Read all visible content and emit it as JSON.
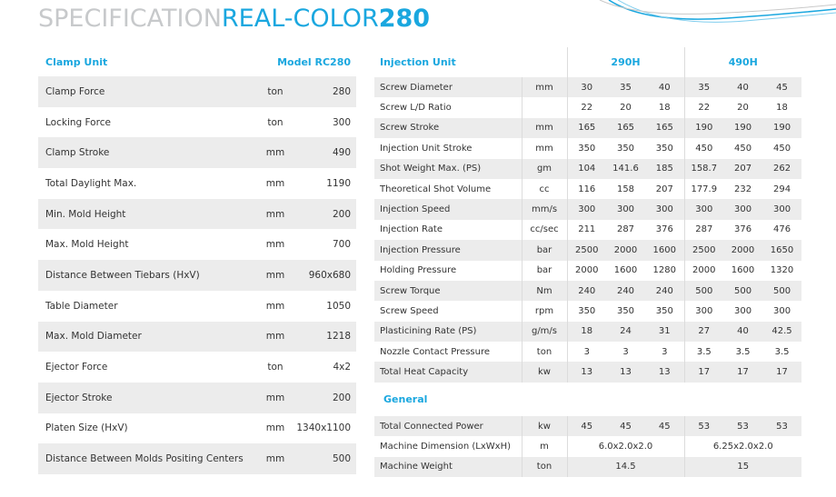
{
  "title": {
    "light": "SPECIFICATION",
    "blue": "REAL-COLOR",
    "bold": "280"
  },
  "clamp": {
    "header": "Clamp Unit",
    "model": "Model RC280",
    "rows": [
      {
        "name": "Clamp Force",
        "unit": "ton",
        "value": "280"
      },
      {
        "name": "Locking Force",
        "unit": "ton",
        "value": "300"
      },
      {
        "name": "Clamp Stroke",
        "unit": "mm",
        "value": "490"
      },
      {
        "name": "Total Daylight Max.",
        "unit": "mm",
        "value": "1190"
      },
      {
        "name": "Min. Mold Height",
        "unit": "mm",
        "value": "200"
      },
      {
        "name": "Max. Mold Height",
        "unit": "mm",
        "value": "700"
      },
      {
        "name": "Distance Between Tiebars (HxV)",
        "unit": "mm",
        "value": "960x680"
      },
      {
        "name": "Table Diameter",
        "unit": "mm",
        "value": "1050"
      },
      {
        "name": "Max. Mold Diameter",
        "unit": "mm",
        "value": "1218"
      },
      {
        "name": "Ejector Force",
        "unit": "ton",
        "value": "4x2"
      },
      {
        "name": "Ejector Stroke",
        "unit": "mm",
        "value": "200"
      },
      {
        "name": "Platen Size (HxV)",
        "unit": "mm",
        "value": "1340x1100"
      },
      {
        "name": "Distance Between Molds Positing Centers",
        "unit": "mm",
        "value": "500"
      }
    ]
  },
  "injection": {
    "header": "Injection Unit",
    "group1": "290H",
    "group2": "490H",
    "rows": [
      {
        "name": "Screw Diameter",
        "unit": "mm",
        "v": [
          "30",
          "35",
          "40",
          "35",
          "40",
          "45"
        ]
      },
      {
        "name": "Screw L/D Ratio",
        "unit": "",
        "v": [
          "22",
          "20",
          "18",
          "22",
          "20",
          "18"
        ]
      },
      {
        "name": "Screw Stroke",
        "unit": "mm",
        "v": [
          "165",
          "165",
          "165",
          "190",
          "190",
          "190"
        ]
      },
      {
        "name": "Injection Unit Stroke",
        "unit": "mm",
        "v": [
          "350",
          "350",
          "350",
          "450",
          "450",
          "450"
        ]
      },
      {
        "name": "Shot Weight Max. (PS)",
        "unit": "gm",
        "v": [
          "104",
          "141.6",
          "185",
          "158.7",
          "207",
          "262"
        ]
      },
      {
        "name": "Theoretical Shot Volume",
        "unit": "cc",
        "v": [
          "116",
          "158",
          "207",
          "177.9",
          "232",
          "294"
        ]
      },
      {
        "name": "Injection Speed",
        "unit": "mm/s",
        "v": [
          "300",
          "300",
          "300",
          "300",
          "300",
          "300"
        ]
      },
      {
        "name": "Injection Rate",
        "unit": "cc/sec",
        "v": [
          "211",
          "287",
          "376",
          "287",
          "376",
          "476"
        ]
      },
      {
        "name": "Injection Pressure",
        "unit": "bar",
        "v": [
          "2500",
          "2000",
          "1600",
          "2500",
          "2000",
          "1650"
        ]
      },
      {
        "name": "Holding Pressure",
        "unit": "bar",
        "v": [
          "2000",
          "1600",
          "1280",
          "2000",
          "1600",
          "1320"
        ]
      },
      {
        "name": "Screw Torque",
        "unit": "Nm",
        "v": [
          "240",
          "240",
          "240",
          "500",
          "500",
          "500"
        ]
      },
      {
        "name": "Screw Speed",
        "unit": "rpm",
        "v": [
          "350",
          "350",
          "350",
          "300",
          "300",
          "300"
        ]
      },
      {
        "name": "Plasticining Rate (PS)",
        "unit": "g/m/s",
        "v": [
          "18",
          "24",
          "31",
          "27",
          "40",
          "42.5"
        ]
      },
      {
        "name": "Nozzle Contact Pressure",
        "unit": "ton",
        "v": [
          "3",
          "3",
          "3",
          "3.5",
          "3.5",
          "3.5"
        ]
      },
      {
        "name": "Total Heat Capacity",
        "unit": "kw",
        "v": [
          "13",
          "13",
          "13",
          "17",
          "17",
          "17"
        ]
      }
    ]
  },
  "general": {
    "header": "General",
    "power": {
      "name": "Total Connected Power",
      "unit": "kw",
      "v": [
        "45",
        "45",
        "45",
        "53",
        "53",
        "53"
      ]
    },
    "dimension": {
      "name": "Machine Dimension (LxWxH)",
      "unit": "m",
      "g1": "6.0x2.0x2.0",
      "g2": "6.25x2.0x2.0"
    },
    "weight": {
      "name": "Machine Weight",
      "unit": "ton",
      "g1": "14.5",
      "g2": "15"
    }
  }
}
